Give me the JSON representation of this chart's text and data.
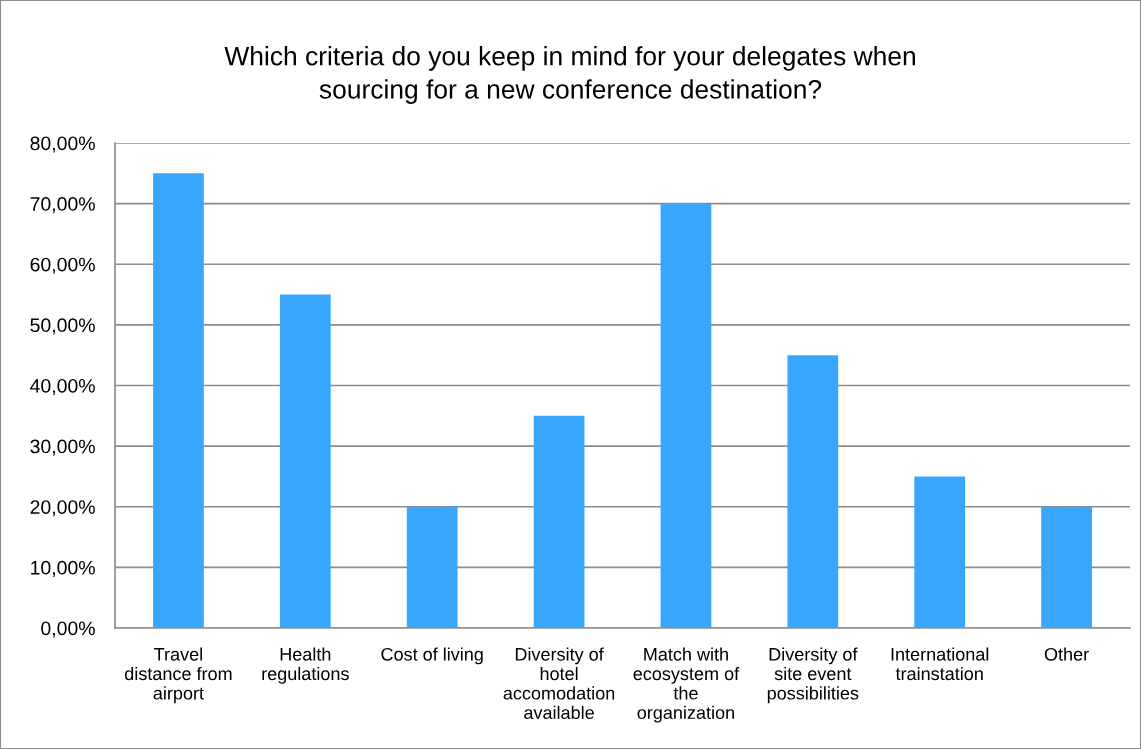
{
  "chart_data": {
    "type": "bar",
    "title": "Which criteria do you keep in mind for your delegates when\nsourcing for a new conference destination?",
    "categories": [
      "Travel\ndistance from\nairport",
      "Health\nregulations",
      "Cost of living",
      "Diversity of\nhotel\naccomodation\navailable",
      "Match with\necosystem of\nthe\norganization",
      "Diversity of\nsite event\npossibilities",
      "International\ntrainstation",
      "Other"
    ],
    "values": [
      75,
      55,
      20,
      35,
      70,
      45,
      25,
      20
    ],
    "color": "#38a6fd",
    "ylim": [
      0,
      80
    ],
    "yticks": [
      {
        "value": 0,
        "label": "0,00%"
      },
      {
        "value": 10,
        "label": "10,00%"
      },
      {
        "value": 20,
        "label": "20,00%"
      },
      {
        "value": 30,
        "label": "30,00%"
      },
      {
        "value": 40,
        "label": "40,00%"
      },
      {
        "value": 50,
        "label": "50,00%"
      },
      {
        "value": 60,
        "label": "60,00%"
      },
      {
        "value": 70,
        "label": "70,00%"
      },
      {
        "value": 80,
        "label": "80,00%"
      }
    ],
    "grid": "y",
    "legend": false
  }
}
